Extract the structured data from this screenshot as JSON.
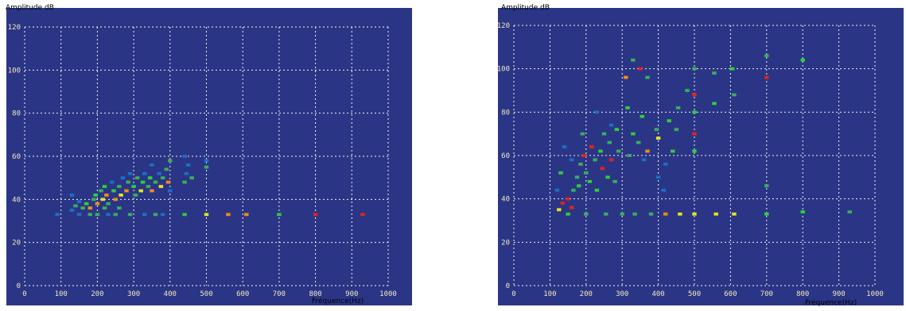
{
  "colors": {
    "background": "#2b3585",
    "grid": "#f2f2f2",
    "label_box": "#f1e7c3",
    "scale": [
      "#1c6fc4",
      "#3aae5c",
      "#2dcf3a",
      "#e3e41e",
      "#f28a18",
      "#e8211c"
    ]
  },
  "chart_data": [
    {
      "type": "heatmap",
      "ylabel": "Amplitude dB",
      "xlabel": "Fréquence(Hz)",
      "xlim": [
        0,
        1000
      ],
      "ylim": [
        0,
        120
      ],
      "x_ticks": [
        "0",
        "100",
        "200",
        "300",
        "400",
        "500",
        "600",
        "700",
        "800",
        "900",
        "1000"
      ],
      "y_ticks": [
        "120",
        "100",
        "80",
        "60",
        "40",
        "20",
        "0"
      ],
      "grid": true,
      "cells": [
        [
          90,
          33,
          1
        ],
        [
          150,
          33,
          1
        ],
        [
          180,
          33,
          2
        ],
        [
          200,
          33,
          2
        ],
        [
          230,
          33,
          1
        ],
        [
          250,
          33,
          2
        ],
        [
          290,
          33,
          2
        ],
        [
          330,
          33,
          1
        ],
        [
          360,
          33,
          2
        ],
        [
          380,
          33,
          1
        ],
        [
          440,
          33,
          3
        ],
        [
          500,
          33,
          4
        ],
        [
          560,
          33,
          5
        ],
        [
          610,
          33,
          5
        ],
        [
          700,
          33,
          3
        ],
        [
          800,
          33,
          6
        ],
        [
          930,
          33,
          7
        ],
        [
          130,
          35,
          1
        ],
        [
          140,
          37,
          2
        ],
        [
          150,
          39,
          1
        ],
        [
          160,
          36,
          2
        ],
        [
          170,
          38,
          3
        ],
        [
          180,
          36,
          5
        ],
        [
          190,
          40,
          2
        ],
        [
          195,
          42,
          3
        ],
        [
          200,
          38,
          5
        ],
        [
          210,
          44,
          2
        ],
        [
          215,
          40,
          4
        ],
        [
          220,
          46,
          3
        ],
        [
          225,
          42,
          5
        ],
        [
          230,
          38,
          2
        ],
        [
          240,
          48,
          1
        ],
        [
          245,
          44,
          3
        ],
        [
          250,
          40,
          5
        ],
        [
          260,
          46,
          2
        ],
        [
          265,
          42,
          4
        ],
        [
          270,
          50,
          1
        ],
        [
          280,
          44,
          5
        ],
        [
          285,
          48,
          2
        ],
        [
          290,
          52,
          1
        ],
        [
          300,
          46,
          3
        ],
        [
          305,
          42,
          2
        ],
        [
          310,
          50,
          2
        ],
        [
          320,
          44,
          4
        ],
        [
          325,
          48,
          3
        ],
        [
          330,
          52,
          1
        ],
        [
          340,
          46,
          2
        ],
        [
          345,
          50,
          3
        ],
        [
          350,
          44,
          5
        ],
        [
          360,
          48,
          2
        ],
        [
          370,
          52,
          1
        ],
        [
          375,
          46,
          4
        ],
        [
          380,
          50,
          2
        ],
        [
          390,
          54,
          2
        ],
        [
          395,
          48,
          5
        ],
        [
          400,
          58,
          2
        ],
        [
          400,
          44,
          1
        ],
        [
          440,
          48,
          2
        ],
        [
          445,
          52,
          1
        ],
        [
          450,
          56,
          1
        ],
        [
          460,
          50,
          2
        ],
        [
          500,
          55,
          2
        ],
        [
          500,
          58,
          1
        ],
        [
          130,
          42,
          1
        ],
        [
          220,
          36,
          2
        ],
        [
          260,
          36,
          2
        ],
        [
          350,
          56,
          1
        ],
        [
          440,
          60,
          1
        ]
      ]
    },
    {
      "type": "heatmap",
      "ylabel": "Amplitude dB",
      "xlabel": "Fréquence(Hz)",
      "xlim": [
        0,
        1000
      ],
      "ylim": [
        0,
        120
      ],
      "x_ticks": [
        "0",
        "100",
        "200",
        "300",
        "400",
        "500",
        "600",
        "700",
        "800",
        "900",
        "1000"
      ],
      "y_ticks": [
        "120",
        "100",
        "80",
        "60",
        "40",
        "20",
        "0"
      ],
      "grid": true,
      "cells": [
        [
          125,
          35,
          4
        ],
        [
          135,
          38,
          6
        ],
        [
          150,
          40,
          6
        ],
        [
          150,
          33,
          3
        ],
        [
          160,
          36,
          6
        ],
        [
          165,
          44,
          2
        ],
        [
          175,
          50,
          2
        ],
        [
          180,
          46,
          3
        ],
        [
          185,
          56,
          2
        ],
        [
          195,
          60,
          6
        ],
        [
          200,
          52,
          2
        ],
        [
          200,
          33,
          2
        ],
        [
          210,
          48,
          3
        ],
        [
          215,
          64,
          6
        ],
        [
          225,
          58,
          2
        ],
        [
          230,
          44,
          3
        ],
        [
          240,
          62,
          3
        ],
        [
          245,
          54,
          6
        ],
        [
          250,
          70,
          2
        ],
        [
          255,
          33,
          2
        ],
        [
          260,
          50,
          3
        ],
        [
          265,
          66,
          2
        ],
        [
          270,
          58,
          6
        ],
        [
          280,
          48,
          2
        ],
        [
          285,
          72,
          3
        ],
        [
          290,
          62,
          2
        ],
        [
          300,
          33,
          2
        ],
        [
          310,
          96,
          5
        ],
        [
          315,
          82,
          3
        ],
        [
          320,
          60,
          2
        ],
        [
          330,
          70,
          3
        ],
        [
          335,
          33,
          2
        ],
        [
          345,
          66,
          2
        ],
        [
          350,
          100,
          6
        ],
        [
          355,
          78,
          3
        ],
        [
          360,
          58,
          1
        ],
        [
          370,
          62,
          5
        ],
        [
          380,
          33,
          2
        ],
        [
          395,
          72,
          2
        ],
        [
          400,
          68,
          4
        ],
        [
          415,
          44,
          1
        ],
        [
          420,
          33,
          5
        ],
        [
          430,
          76,
          3
        ],
        [
          440,
          62,
          3
        ],
        [
          455,
          82,
          2
        ],
        [
          460,
          33,
          4
        ],
        [
          500,
          100,
          2
        ],
        [
          500,
          88,
          6
        ],
        [
          500,
          80,
          3
        ],
        [
          500,
          70,
          6
        ],
        [
          500,
          62,
          3
        ],
        [
          500,
          33,
          4
        ],
        [
          555,
          98,
          2
        ],
        [
          555,
          84,
          3
        ],
        [
          560,
          33,
          4
        ],
        [
          605,
          100,
          3
        ],
        [
          610,
          88,
          2
        ],
        [
          610,
          33,
          4
        ],
        [
          700,
          106,
          2
        ],
        [
          700,
          96,
          6
        ],
        [
          700,
          46,
          2
        ],
        [
          700,
          33,
          3
        ],
        [
          800,
          104,
          3
        ],
        [
          800,
          34,
          3
        ],
        [
          930,
          34,
          2
        ],
        [
          120,
          44,
          1
        ],
        [
          130,
          52,
          3
        ],
        [
          140,
          64,
          1
        ],
        [
          160,
          58,
          1
        ],
        [
          190,
          70,
          2
        ],
        [
          230,
          80,
          1
        ],
        [
          270,
          74,
          1
        ],
        [
          330,
          104,
          2
        ],
        [
          370,
          96,
          2
        ],
        [
          400,
          50,
          1
        ],
        [
          420,
          56,
          1
        ],
        [
          450,
          72,
          2
        ],
        [
          480,
          90,
          2
        ]
      ]
    }
  ]
}
